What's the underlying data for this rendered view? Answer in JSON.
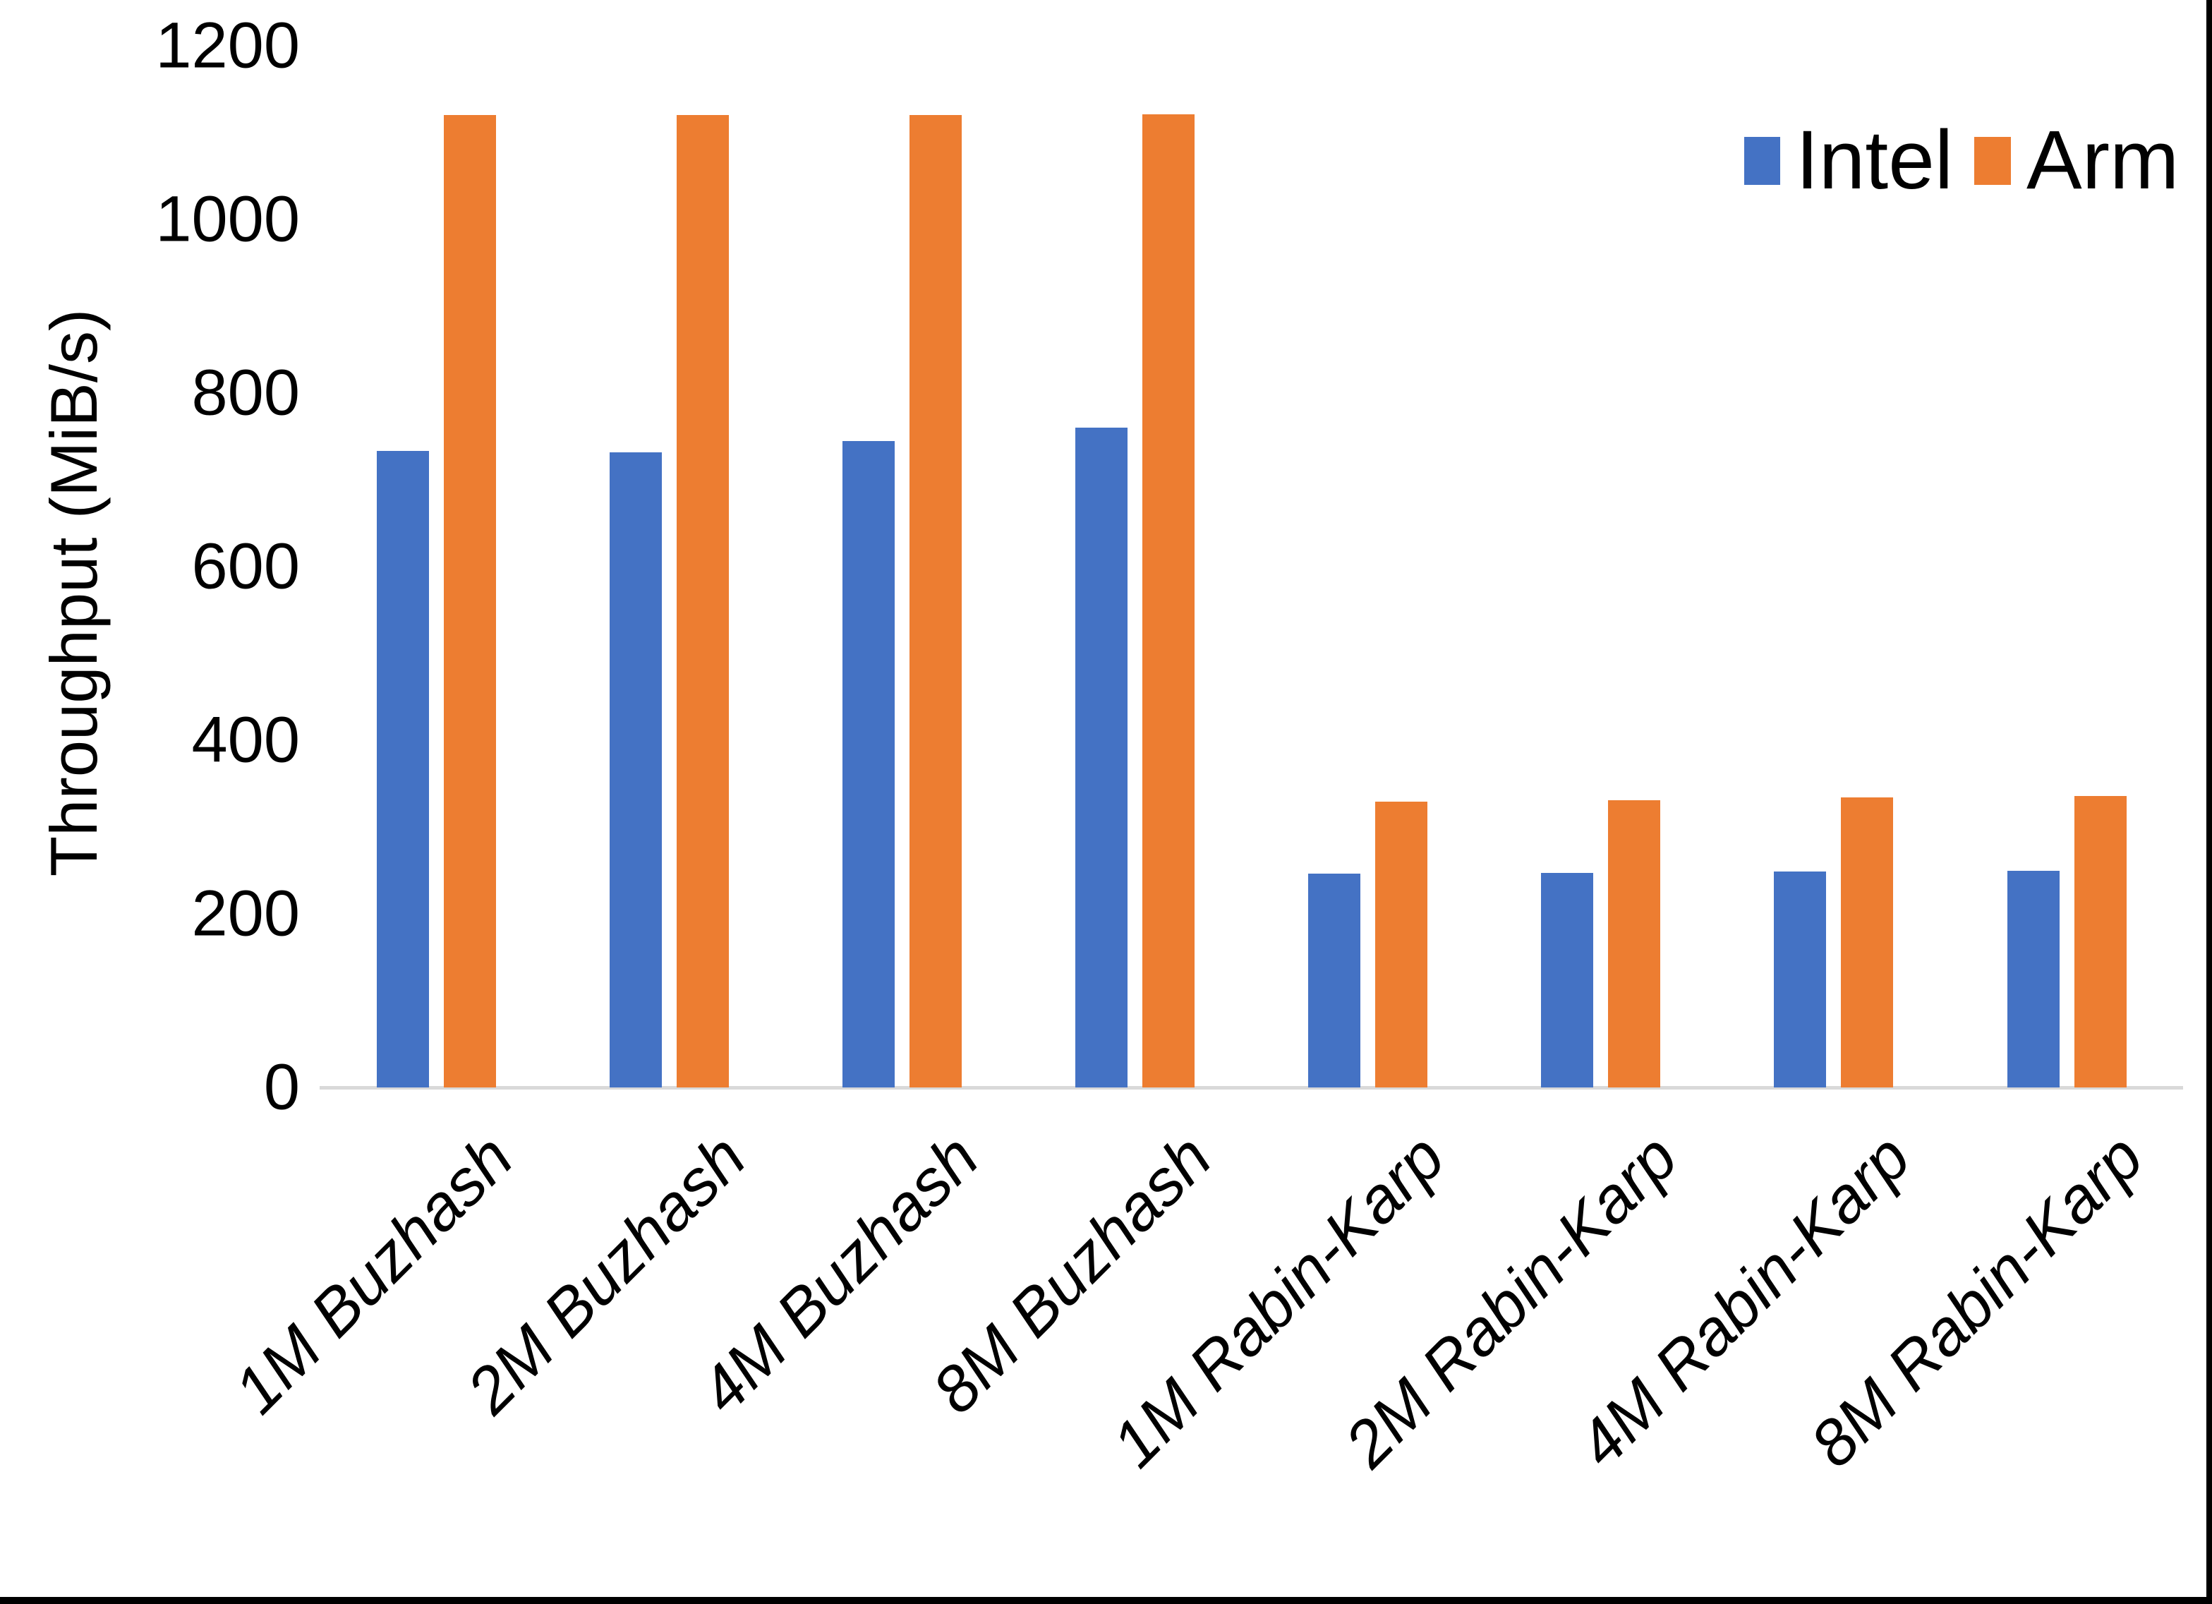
{
  "chart_data": {
    "type": "bar",
    "title": "",
    "xlabel": "",
    "ylabel": "Throughput (MiB/s)",
    "categories": [
      "1M Buzhash",
      "2M Buzhash",
      "4M Buzhash",
      "8M Buzhash",
      "1M Rabin-Karp",
      "2M Rabin-Karp",
      "4M Rabin-Karp",
      "8M Rabin-Karp"
    ],
    "series": [
      {
        "name": "Intel",
        "color": "#4472C4",
        "values": [
          733,
          732,
          745,
          760,
          246,
          247,
          249,
          250
        ]
      },
      {
        "name": "Arm",
        "color": "#ED7D31",
        "values": [
          1120,
          1120,
          1120,
          1121,
          329,
          331,
          334,
          336
        ]
      }
    ],
    "ylim": [
      0,
      1200
    ],
    "yticks": [
      1200,
      1000,
      800,
      600,
      400,
      200,
      0
    ],
    "grid": false,
    "legend_position": "top-right",
    "axis_line_color": "#D9D9D9",
    "text_color": "#000000",
    "frame_border_color": "#000000"
  }
}
